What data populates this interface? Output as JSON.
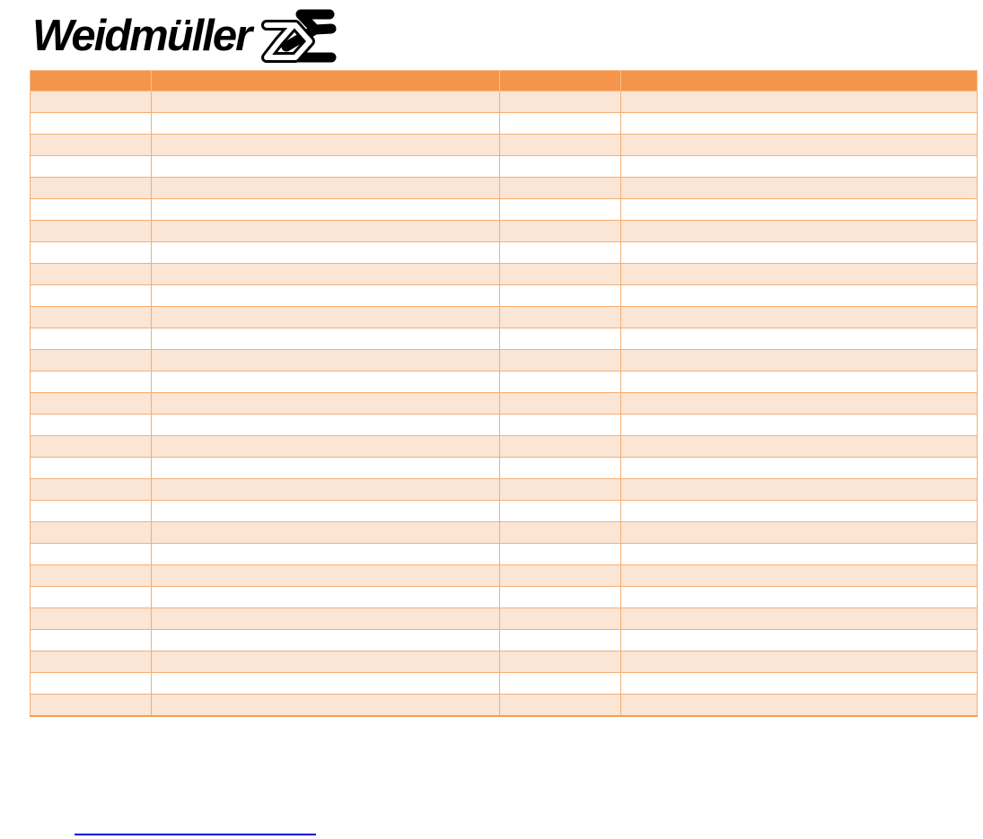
{
  "logo": {
    "brand": "Weidmüller",
    "mark_icon": "weidmueller-connector-mark"
  },
  "table": {
    "header_labels": [
      "",
      "",
      "",
      ""
    ],
    "rows": [
      [
        "",
        "",
        "",
        ""
      ],
      [
        "",
        "",
        "",
        ""
      ],
      [
        "",
        "",
        "",
        ""
      ],
      [
        "",
        "",
        "",
        ""
      ],
      [
        "",
        "",
        "",
        ""
      ],
      [
        "",
        "",
        "",
        ""
      ],
      [
        "",
        "",
        "",
        ""
      ],
      [
        "",
        "",
        "",
        ""
      ],
      [
        "",
        "",
        "",
        ""
      ],
      [
        "",
        "",
        "",
        ""
      ],
      [
        "",
        "",
        "",
        ""
      ],
      [
        "",
        "",
        "",
        ""
      ],
      [
        "",
        "",
        "",
        ""
      ],
      [
        "",
        "",
        "",
        ""
      ],
      [
        "",
        "",
        "",
        ""
      ],
      [
        "",
        "",
        "",
        ""
      ],
      [
        "",
        "",
        "",
        ""
      ],
      [
        "",
        "",
        "",
        ""
      ],
      [
        "",
        "",
        "",
        ""
      ],
      [
        "",
        "",
        "",
        ""
      ],
      [
        "",
        "",
        "",
        ""
      ],
      [
        "",
        "",
        "",
        ""
      ],
      [
        "",
        "",
        "",
        ""
      ],
      [
        "",
        "",
        "",
        ""
      ],
      [
        "",
        "",
        "",
        ""
      ],
      [
        "",
        "",
        "",
        ""
      ],
      [
        "",
        "",
        "",
        ""
      ],
      [
        "",
        "",
        "",
        ""
      ],
      [
        "",
        "",
        "",
        ""
      ]
    ]
  },
  "footer": {
    "link_text": ""
  },
  "theme": {
    "header_bg": "#F4954B",
    "band_bg": "#FBE5D4",
    "alt_bg": "#FFFFFF",
    "grid_border": "#F5AE74",
    "outer_bottom": "#F0A053",
    "link_color": "#0000DD",
    "logo_color": "#000000"
  }
}
